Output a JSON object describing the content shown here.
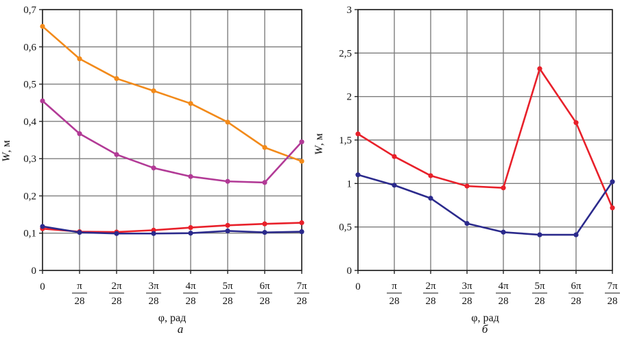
{
  "chart_data": [
    {
      "type": "line",
      "panel_label": "а",
      "xlabel": "φ, рад",
      "ylabel_italic": "W",
      "ylabel_rest": ", м",
      "x": [
        0,
        1,
        2,
        3,
        4,
        5,
        6,
        7
      ],
      "x_ticks": [
        {
          "plain": "0"
        },
        {
          "num": "π",
          "den": "28"
        },
        {
          "num": "2π",
          "den": "28"
        },
        {
          "num": "3π",
          "den": "28"
        },
        {
          "num": "4π",
          "den": "28"
        },
        {
          "num": "5π",
          "den": "28"
        },
        {
          "num": "6π",
          "den": "28"
        },
        {
          "num": "7π",
          "den": "28"
        }
      ],
      "y_ticks": [
        "0",
        "0,1",
        "0,2",
        "0,3",
        "0,4",
        "0,5",
        "0,6",
        "0,7"
      ],
      "y_tick_values": [
        0,
        0.1,
        0.2,
        0.3,
        0.4,
        0.5,
        0.6,
        0.7
      ],
      "ylim": [
        0,
        0.7
      ],
      "grid": true,
      "series": [
        {
          "color": "#f28a1a",
          "values": [
            0.655,
            0.568,
            0.515,
            0.482,
            0.448,
            0.398,
            0.33,
            0.293
          ]
        },
        {
          "color": "#b23a96",
          "values": [
            0.455,
            0.367,
            0.311,
            0.275,
            0.252,
            0.239,
            0.236,
            0.345
          ]
        },
        {
          "color": "#e8202a",
          "values": [
            0.112,
            0.104,
            0.103,
            0.108,
            0.115,
            0.121,
            0.125,
            0.128
          ]
        },
        {
          "color": "#2b2a8c",
          "values": [
            0.118,
            0.102,
            0.099,
            0.099,
            0.1,
            0.106,
            0.102,
            0.104
          ]
        }
      ]
    },
    {
      "type": "line",
      "panel_label": "б",
      "xlabel": "φ, рад",
      "ylabel_italic": "W",
      "ylabel_rest": ", м",
      "x": [
        0,
        1,
        2,
        3,
        4,
        5,
        6,
        7
      ],
      "x_ticks": [
        {
          "plain": "0"
        },
        {
          "num": "π",
          "den": "28"
        },
        {
          "num": "2π",
          "den": "28"
        },
        {
          "num": "3π",
          "den": "28"
        },
        {
          "num": "4π",
          "den": "28"
        },
        {
          "num": "5π",
          "den": "28"
        },
        {
          "num": "6π",
          "den": "28"
        },
        {
          "num": "7π",
          "den": "28"
        }
      ],
      "y_ticks": [
        "0",
        "0,5",
        "1",
        "1,5",
        "2",
        "2,5",
        "3"
      ],
      "y_tick_values": [
        0,
        0.5,
        1,
        1.5,
        2,
        2.5,
        3
      ],
      "ylim": [
        0,
        3
      ],
      "grid": true,
      "series": [
        {
          "color": "#e8202a",
          "values": [
            1.57,
            1.31,
            1.09,
            0.97,
            0.95,
            2.32,
            1.7,
            0.72
          ]
        },
        {
          "color": "#2b2a8c",
          "values": [
            1.1,
            0.98,
            0.83,
            0.54,
            0.44,
            0.41,
            0.41,
            1.02
          ]
        }
      ]
    }
  ]
}
